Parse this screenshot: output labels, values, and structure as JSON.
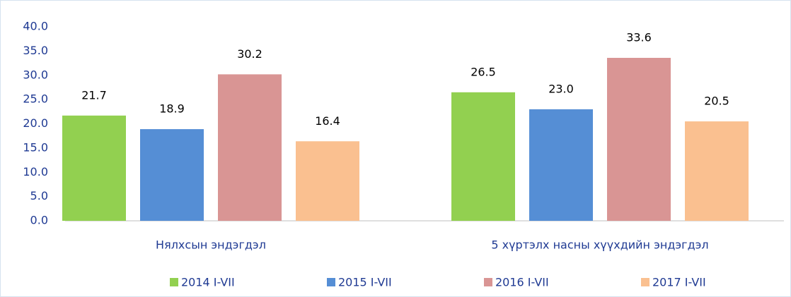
{
  "chart_data": {
    "type": "bar",
    "categories": [
      "Нялхсын эндэгдэл",
      "5 хүртэлх насны хүүхдийн эндэгдэл"
    ],
    "series": [
      {
        "name": "2014 I-VII",
        "color": "#92d050",
        "values": [
          21.7,
          26.5
        ],
        "value_labels": [
          "21.7",
          "26.5"
        ]
      },
      {
        "name": "2015 I-VII",
        "color": "#558ed5",
        "values": [
          18.9,
          23.0
        ],
        "value_labels": [
          "18.9",
          "23.0"
        ]
      },
      {
        "name": "2016 I-VII",
        "color": "#d99594",
        "values": [
          30.2,
          33.6
        ],
        "value_labels": [
          "30.2",
          "33.6"
        ]
      },
      {
        "name": "2017 I-VII",
        "color": "#fac090",
        "values": [
          16.4,
          20.5
        ],
        "value_labels": [
          "16.4",
          "20.5"
        ]
      }
    ],
    "ylim": [
      0,
      40
    ],
    "yticks": [
      {
        "value": 0,
        "label": "0.0"
      },
      {
        "value": 5,
        "label": "5.0"
      },
      {
        "value": 10,
        "label": "10.0"
      },
      {
        "value": 15,
        "label": "15.0"
      },
      {
        "value": 20,
        "label": "20.0"
      },
      {
        "value": 25,
        "label": "25.0"
      },
      {
        "value": 30,
        "label": "30.0"
      },
      {
        "value": 35,
        "label": "35.0"
      },
      {
        "value": 40,
        "label": "40.0"
      }
    ],
    "grid": false,
    "legend": "bottom"
  }
}
